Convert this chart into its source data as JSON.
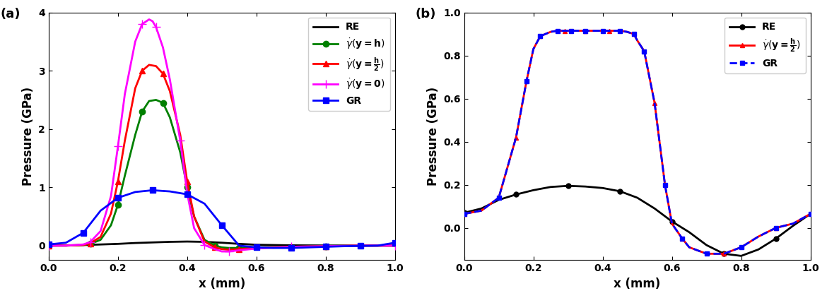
{
  "fig_width": 11.7,
  "fig_height": 4.22,
  "dpi": 100,
  "panel_a": {
    "label": "(a)",
    "xlabel": "x (mm)",
    "ylabel": "Pressure (GPa)",
    "xlim": [
      0.0,
      1.0
    ],
    "ylim": [
      -0.25,
      4.0
    ],
    "yticks": [
      0,
      1,
      2,
      3,
      4
    ],
    "xticks": [
      0.0,
      0.2,
      0.4,
      0.6,
      0.8,
      1.0
    ],
    "RE": {
      "color": "black",
      "lw": 2.0,
      "x": [
        0.0,
        0.05,
        0.1,
        0.15,
        0.2,
        0.25,
        0.3,
        0.35,
        0.4,
        0.45,
        0.5,
        0.55,
        0.6,
        0.7,
        0.8,
        0.9,
        1.0
      ],
      "y": [
        0.0,
        0.005,
        0.01,
        0.02,
        0.03,
        0.045,
        0.055,
        0.065,
        0.07,
        0.065,
        0.05,
        0.03,
        0.015,
        0.005,
        0.002,
        0.001,
        0.0
      ]
    },
    "gdot_yh": {
      "color": "green",
      "lw": 2.0,
      "marker": "o",
      "ms": 6,
      "markevery": 3,
      "x": [
        0.0,
        0.05,
        0.1,
        0.12,
        0.15,
        0.18,
        0.2,
        0.22,
        0.25,
        0.27,
        0.29,
        0.31,
        0.33,
        0.35,
        0.38,
        0.4,
        0.42,
        0.45,
        0.48,
        0.5,
        0.52,
        0.55,
        0.6,
        0.7,
        0.8,
        0.9,
        1.0
      ],
      "y": [
        0.0,
        0.0,
        0.01,
        0.03,
        0.1,
        0.35,
        0.7,
        1.2,
        1.9,
        2.3,
        2.48,
        2.5,
        2.45,
        2.2,
        1.6,
        1.0,
        0.5,
        0.1,
        0.0,
        -0.03,
        -0.04,
        -0.04,
        -0.03,
        -0.02,
        -0.01,
        0.0,
        0.0
      ]
    },
    "gdot_yh2": {
      "color": "red",
      "lw": 2.0,
      "marker": "^",
      "ms": 6,
      "markevery": 3,
      "x": [
        0.0,
        0.05,
        0.1,
        0.12,
        0.15,
        0.18,
        0.2,
        0.22,
        0.25,
        0.27,
        0.29,
        0.31,
        0.33,
        0.35,
        0.38,
        0.4,
        0.42,
        0.45,
        0.48,
        0.5,
        0.52,
        0.55,
        0.6,
        0.7,
        0.8,
        0.9,
        1.0
      ],
      "y": [
        0.0,
        0.0,
        0.01,
        0.04,
        0.15,
        0.55,
        1.1,
        1.8,
        2.7,
        3.0,
        3.1,
        3.08,
        2.95,
        2.65,
        1.9,
        1.1,
        0.5,
        0.07,
        -0.03,
        -0.06,
        -0.07,
        -0.06,
        -0.04,
        -0.02,
        -0.01,
        0.0,
        0.0
      ]
    },
    "gdot_y0": {
      "color": "magenta",
      "lw": 2.0,
      "marker": "+",
      "ms": 8,
      "markevery": 3,
      "x": [
        0.0,
        0.05,
        0.1,
        0.12,
        0.15,
        0.18,
        0.2,
        0.22,
        0.25,
        0.27,
        0.29,
        0.3,
        0.31,
        0.33,
        0.35,
        0.38,
        0.4,
        0.42,
        0.45,
        0.48,
        0.5,
        0.52,
        0.55,
        0.6,
        0.7,
        0.8,
        0.9,
        1.0
      ],
      "y": [
        0.0,
        0.0,
        0.02,
        0.06,
        0.25,
        0.85,
        1.7,
        2.6,
        3.5,
        3.8,
        3.88,
        3.85,
        3.75,
        3.4,
        2.85,
        1.8,
        0.9,
        0.3,
        0.01,
        -0.06,
        -0.1,
        -0.1,
        -0.08,
        -0.05,
        -0.02,
        -0.01,
        0.0,
        0.0
      ]
    },
    "GR": {
      "color": "blue",
      "lw": 2.0,
      "marker": "s",
      "ms": 6,
      "markevery": 2,
      "x": [
        0.0,
        0.05,
        0.1,
        0.15,
        0.2,
        0.25,
        0.3,
        0.35,
        0.4,
        0.45,
        0.5,
        0.55,
        0.6,
        0.65,
        0.7,
        0.75,
        0.8,
        0.85,
        0.9,
        0.95,
        1.0
      ],
      "y": [
        0.02,
        0.05,
        0.22,
        0.6,
        0.82,
        0.92,
        0.95,
        0.93,
        0.88,
        0.72,
        0.35,
        0.0,
        -0.03,
        -0.04,
        -0.04,
        -0.03,
        -0.02,
        -0.01,
        -0.005,
        0.0,
        0.05
      ]
    }
  },
  "panel_b": {
    "label": "(b)",
    "xlabel": "x (mm)",
    "ylabel": "Pressure (GPa)",
    "xlim": [
      0.0,
      1.0
    ],
    "ylim": [
      -0.15,
      1.0
    ],
    "yticks": [
      0.0,
      0.2,
      0.4,
      0.6,
      0.8,
      1.0
    ],
    "xticks": [
      0.0,
      0.2,
      0.4,
      0.6,
      0.8,
      1.0
    ],
    "RE": {
      "color": "black",
      "lw": 2.0,
      "marker": "o",
      "ms": 5,
      "markevery": 3,
      "x": [
        0.0,
        0.05,
        0.1,
        0.15,
        0.2,
        0.25,
        0.3,
        0.35,
        0.4,
        0.45,
        0.5,
        0.55,
        0.6,
        0.65,
        0.7,
        0.75,
        0.8,
        0.85,
        0.9,
        0.95,
        1.0
      ],
      "y": [
        0.07,
        0.09,
        0.13,
        0.155,
        0.175,
        0.19,
        0.195,
        0.192,
        0.185,
        0.17,
        0.14,
        0.09,
        0.03,
        -0.02,
        -0.08,
        -0.12,
        -0.13,
        -0.1,
        -0.05,
        0.01,
        0.065
      ]
    },
    "gdot_yh2": {
      "color": "red",
      "lw": 2.0,
      "marker": "^",
      "ms": 5,
      "markevery": 3,
      "x": [
        0.0,
        0.05,
        0.1,
        0.15,
        0.18,
        0.2,
        0.22,
        0.25,
        0.27,
        0.29,
        0.31,
        0.33,
        0.35,
        0.38,
        0.4,
        0.42,
        0.45,
        0.47,
        0.49,
        0.5,
        0.52,
        0.55,
        0.58,
        0.6,
        0.63,
        0.65,
        0.7,
        0.75,
        0.8,
        0.85,
        0.9,
        0.95,
        1.0
      ],
      "y": [
        0.065,
        0.08,
        0.14,
        0.42,
        0.68,
        0.83,
        0.89,
        0.91,
        0.915,
        0.915,
        0.915,
        0.915,
        0.915,
        0.915,
        0.915,
        0.915,
        0.915,
        0.91,
        0.9,
        0.87,
        0.82,
        0.58,
        0.2,
        0.02,
        -0.05,
        -0.09,
        -0.12,
        -0.12,
        -0.09,
        -0.04,
        0.0,
        0.02,
        0.065
      ]
    },
    "GR": {
      "color": "blue",
      "lw": 2.0,
      "ls": "--",
      "marker": "s",
      "ms": 5,
      "markevery": 2,
      "x": [
        0.0,
        0.05,
        0.1,
        0.15,
        0.18,
        0.2,
        0.22,
        0.25,
        0.27,
        0.29,
        0.31,
        0.33,
        0.35,
        0.38,
        0.4,
        0.42,
        0.45,
        0.47,
        0.49,
        0.5,
        0.52,
        0.55,
        0.58,
        0.6,
        0.63,
        0.65,
        0.7,
        0.75,
        0.8,
        0.85,
        0.9,
        0.95,
        1.0
      ],
      "y": [
        0.065,
        0.08,
        0.14,
        0.42,
        0.68,
        0.83,
        0.89,
        0.91,
        0.915,
        0.915,
        0.915,
        0.915,
        0.915,
        0.915,
        0.915,
        0.915,
        0.915,
        0.91,
        0.9,
        0.87,
        0.82,
        0.58,
        0.2,
        0.02,
        -0.05,
        -0.09,
        -0.12,
        -0.12,
        -0.09,
        -0.04,
        0.0,
        0.02,
        0.065
      ]
    }
  }
}
